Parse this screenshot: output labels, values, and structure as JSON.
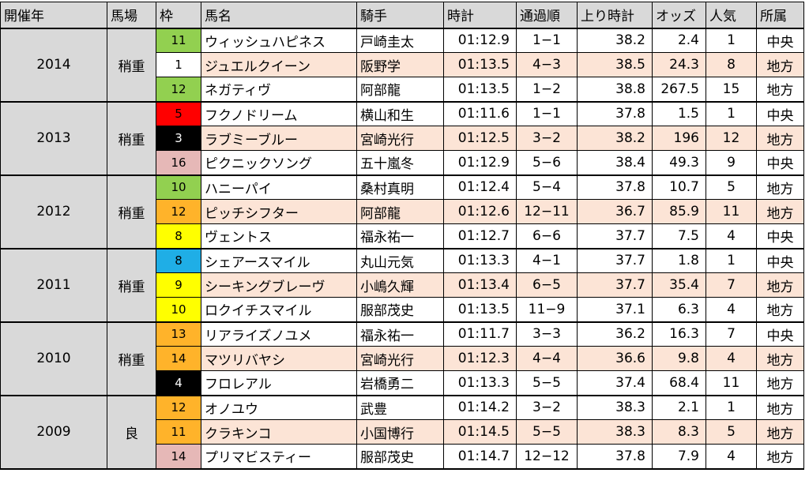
{
  "headers": [
    "開催年",
    "馬場",
    "枠",
    "馬名",
    "騎手",
    "時計",
    "通過順",
    "上り時計",
    "オッズ",
    "人気",
    "所属"
  ],
  "frame_colors": {
    "1": "#ffffff",
    "3": "#000000",
    "4": "#000000",
    "5": "#ff0000",
    "8": "#ffff00",
    "8b": "#1faee6",
    "9": "#ffff00",
    "10": "#ffff00",
    "10g": "#92d050",
    "11": "#92d050",
    "11o": "#ffb32a",
    "12": "#92d050",
    "12o": "#ffb32a",
    "13": "#ffb32a",
    "14": "#ffb32a",
    "14p": "#e6b8b7",
    "16": "#e6b8b7"
  },
  "groups": [
    {
      "year": "2014",
      "condition": "稍重",
      "rows": [
        {
          "frame": "11",
          "frame_color": "#92d050",
          "frame_text_color": "#000000",
          "horse": "ウィッシュハピネス",
          "jockey": "戸崎圭太",
          "time": "01:12.9",
          "passing": "1−1",
          "last": "38.2",
          "odds": "2.4",
          "pop": "1",
          "aff": "中央"
        },
        {
          "frame": "1",
          "frame_color": "#ffffff",
          "frame_text_color": "#000000",
          "horse": "ジュエルクイーン",
          "jockey": "阪野学",
          "time": "01:13.5",
          "passing": "4−3",
          "last": "38.5",
          "odds": "24.3",
          "pop": "8",
          "aff": "地方"
        },
        {
          "frame": "12",
          "frame_color": "#92d050",
          "frame_text_color": "#000000",
          "horse": "ネガティヴ",
          "jockey": "阿部龍",
          "time": "01:13.5",
          "passing": "1−2",
          "last": "38.8",
          "odds": "267.5",
          "pop": "15",
          "aff": "地方"
        }
      ]
    },
    {
      "year": "2013",
      "condition": "稍重",
      "rows": [
        {
          "frame": "5",
          "frame_color": "#ff0000",
          "frame_text_color": "#000000",
          "horse": "フクノドリーム",
          "jockey": "横山和生",
          "time": "01:11.6",
          "passing": "1−1",
          "last": "37.8",
          "odds": "1.5",
          "pop": "1",
          "aff": "中央"
        },
        {
          "frame": "3",
          "frame_color": "#000000",
          "frame_text_color": "#ffffff",
          "horse": "ラブミーブルー",
          "jockey": "宮崎光行",
          "time": "01:12.5",
          "passing": "3−2",
          "last": "38.2",
          "odds": "196",
          "pop": "12",
          "aff": "地方"
        },
        {
          "frame": "16",
          "frame_color": "#e6b8b7",
          "frame_text_color": "#000000",
          "horse": "ピクニックソング",
          "jockey": "五十嵐冬",
          "time": "01:12.9",
          "passing": "5−6",
          "last": "38.4",
          "odds": "49.3",
          "pop": "9",
          "aff": "中央"
        }
      ]
    },
    {
      "year": "2012",
      "condition": "稍重",
      "rows": [
        {
          "frame": "10",
          "frame_color": "#92d050",
          "frame_text_color": "#000000",
          "horse": "ハニーパイ",
          "jockey": "桑村真明",
          "time": "01:12.4",
          "passing": "5−4",
          "last": "37.8",
          "odds": "10.7",
          "pop": "5",
          "aff": "地方"
        },
        {
          "frame": "12",
          "frame_color": "#ffb32a",
          "frame_text_color": "#000000",
          "horse": "ピッチシフター",
          "jockey": "阿部龍",
          "time": "01:12.6",
          "passing": "12−11",
          "last": "36.7",
          "odds": "85.9",
          "pop": "11",
          "aff": "地方"
        },
        {
          "frame": "8",
          "frame_color": "#ffff00",
          "frame_text_color": "#000000",
          "horse": "ヴェントス",
          "jockey": "福永祐一",
          "time": "01:12.7",
          "passing": "6−6",
          "last": "37.7",
          "odds": "7.5",
          "pop": "4",
          "aff": "中央"
        }
      ]
    },
    {
      "year": "2011",
      "condition": "稍重",
      "rows": [
        {
          "frame": "8",
          "frame_color": "#1faee6",
          "frame_text_color": "#000000",
          "horse": "シェアースマイル",
          "jockey": "丸山元気",
          "time": "01:13.3",
          "passing": "4−1",
          "last": "37.7",
          "odds": "1.8",
          "pop": "1",
          "aff": "中央"
        },
        {
          "frame": "9",
          "frame_color": "#ffff00",
          "frame_text_color": "#000000",
          "horse": "シーキングブレーヴ",
          "jockey": "小嶋久輝",
          "time": "01:13.4",
          "passing": "6−5",
          "last": "37.7",
          "odds": "35.4",
          "pop": "7",
          "aff": "地方"
        },
        {
          "frame": "10",
          "frame_color": "#ffff00",
          "frame_text_color": "#000000",
          "horse": "ロクイチスマイル",
          "jockey": "服部茂史",
          "time": "01:13.5",
          "passing": "11−9",
          "last": "37.1",
          "odds": "6.3",
          "pop": "4",
          "aff": "地方"
        }
      ]
    },
    {
      "year": "2010",
      "condition": "稍重",
      "rows": [
        {
          "frame": "13",
          "frame_color": "#ffb32a",
          "frame_text_color": "#000000",
          "horse": "リアライズノユメ",
          "jockey": "福永祐一",
          "time": "01:11.7",
          "passing": "3−3",
          "last": "36.2",
          "odds": "16.3",
          "pop": "7",
          "aff": "中央"
        },
        {
          "frame": "14",
          "frame_color": "#ffb32a",
          "frame_text_color": "#000000",
          "horse": "マツリバヤシ",
          "jockey": "宮崎光行",
          "time": "01:12.3",
          "passing": "4−4",
          "last": "36.6",
          "odds": "9.8",
          "pop": "4",
          "aff": "地方"
        },
        {
          "frame": "4",
          "frame_color": "#000000",
          "frame_text_color": "#ffffff",
          "horse": "フロレアル",
          "jockey": "岩橋勇二",
          "time": "01:13.3",
          "passing": "5−5",
          "last": "37.4",
          "odds": "68.4",
          "pop": "11",
          "aff": "地方"
        }
      ]
    },
    {
      "year": "2009",
      "condition": "良",
      "rows": [
        {
          "frame": "12",
          "frame_color": "#ffb32a",
          "frame_text_color": "#000000",
          "horse": "オノユウ",
          "jockey": "武豊",
          "time": "01:14.2",
          "passing": "3−2",
          "last": "38.3",
          "odds": "2.1",
          "pop": "1",
          "aff": "地方"
        },
        {
          "frame": "11",
          "frame_color": "#ffb32a",
          "frame_text_color": "#000000",
          "horse": "クラキンコ",
          "jockey": "小国博行",
          "time": "01:14.5",
          "passing": "5−5",
          "last": "38.3",
          "odds": "8.3",
          "pop": "5",
          "aff": "地方"
        },
        {
          "frame": "14",
          "frame_color": "#e6b8b7",
          "frame_text_color": "#000000",
          "horse": "プリマビスティー",
          "jockey": "服部茂史",
          "time": "01:14.7",
          "passing": "12−12",
          "last": "37.8",
          "odds": "7.9",
          "pop": "4",
          "aff": "地方"
        }
      ]
    }
  ]
}
